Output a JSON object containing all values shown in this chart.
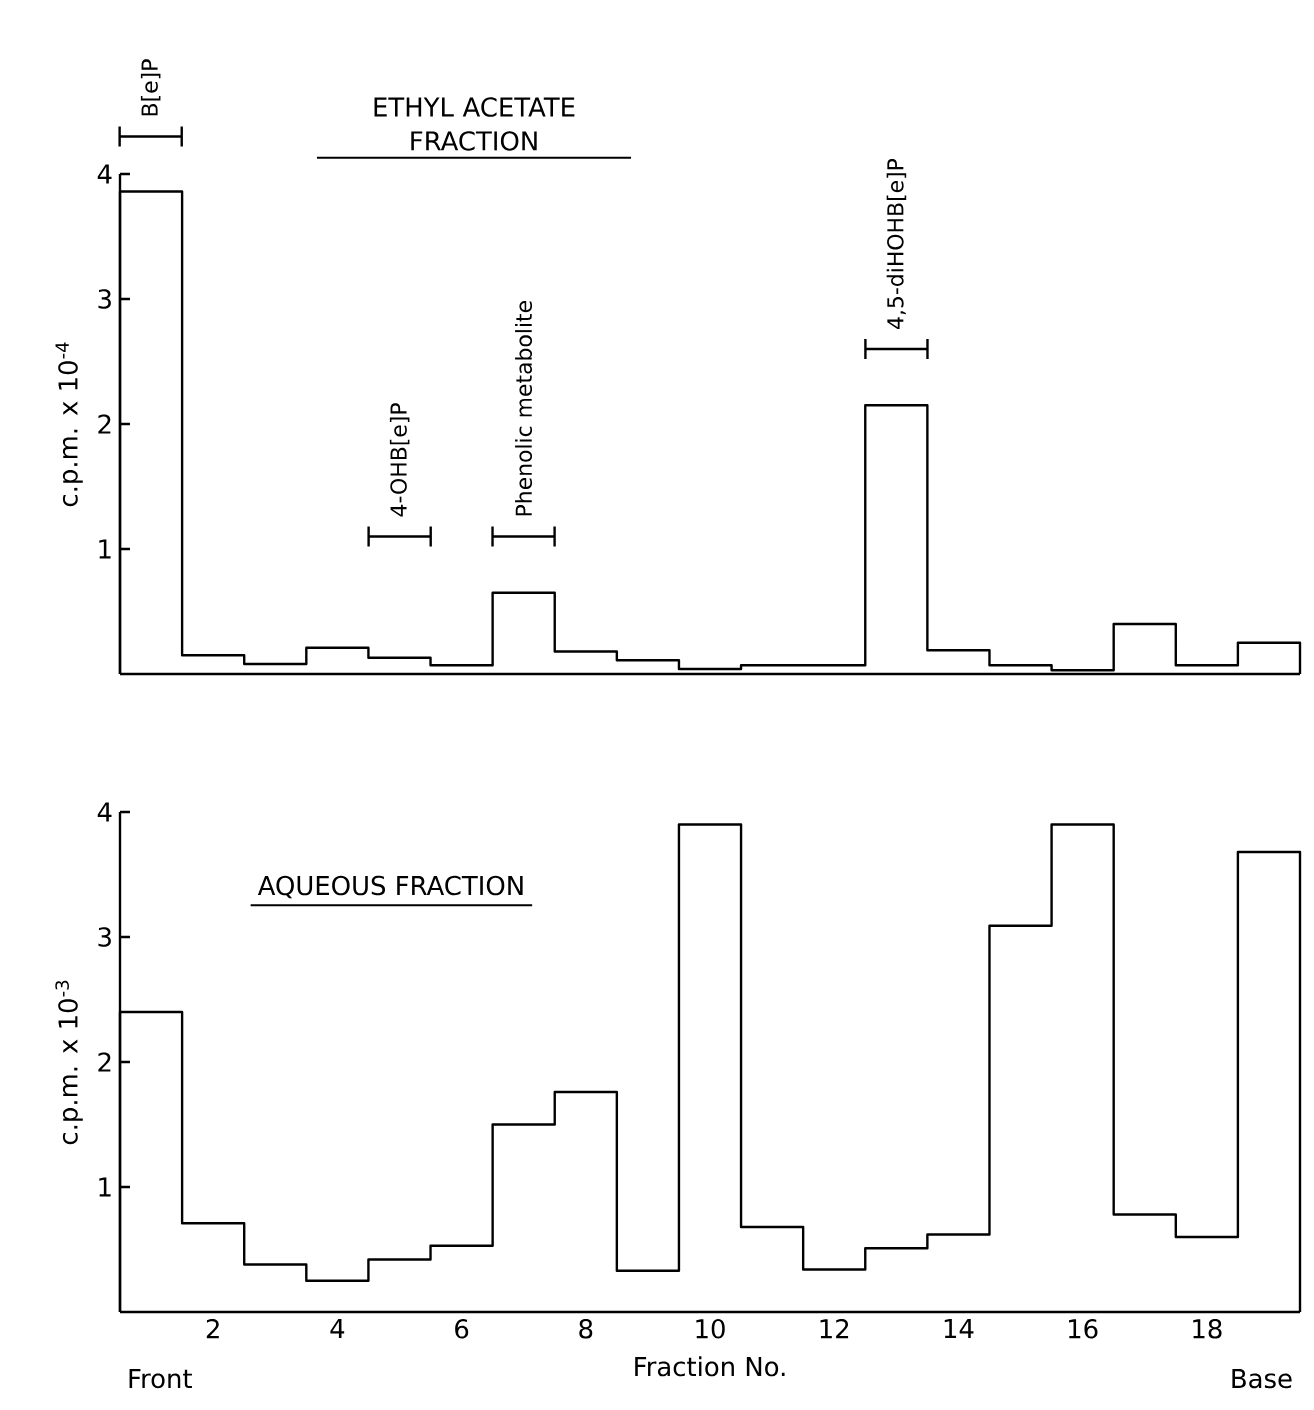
{
  "chart_data": [
    {
      "type": "histogram",
      "title": "ETHYL ACETATE FRACTION",
      "ylabel": "c.p.m. x 10$^{-4}$",
      "bins": [
        0.5,
        1.5,
        2.5,
        3.5,
        4.5,
        5.5,
        6.5,
        7.5,
        8.5,
        9.5,
        10.5,
        11.5,
        12.5,
        13.5,
        14.5,
        15.5,
        16.5,
        17.5,
        18.5,
        19.5
      ],
      "values": [
        3.86,
        0.15,
        0.08,
        0.21,
        0.13,
        0.07,
        0.65,
        0.18,
        0.11,
        0.04,
        0.07,
        0.07,
        2.15,
        0.19,
        0.07,
        0.03,
        0.4,
        0.07,
        0.25
      ],
      "color": "#000000",
      "xlim": [
        0.5,
        19.5
      ],
      "ylim": [
        0,
        4
      ],
      "yticks": [
        1,
        2,
        3,
        4
      ],
      "tick_labels": "y",
      "annotations": [
        "B[e]P",
        "4-OHB[e]P",
        "Phenolic metabolite",
        "4,5-diHOHB[e]P"
      ]
    },
    {
      "type": "histogram",
      "title": "AQUEOUS FRACTION",
      "ylabel": "c.p.m. x 10$^{-3}$",
      "xlabel": "Fraction No.",
      "bins": [
        0.5,
        1.5,
        2.5,
        3.5,
        4.5,
        5.5,
        6.5,
        7.5,
        8.5,
        9.5,
        10.5,
        11.5,
        12.5,
        13.5,
        14.5,
        15.5,
        16.5,
        17.5,
        18.5,
        19.5
      ],
      "values": [
        2.4,
        0.71,
        0.38,
        0.25,
        0.42,
        0.53,
        1.5,
        1.76,
        0.33,
        3.9,
        0.68,
        0.34,
        0.51,
        0.62,
        3.09,
        3.9,
        0.78,
        0.6,
        3.68
      ],
      "color": "#000000",
      "xlim": [
        0.5,
        19.5
      ],
      "ylim": [
        0,
        4
      ],
      "yticks": [
        1,
        2,
        3,
        4
      ],
      "xticks": [
        2,
        4,
        6,
        8,
        10,
        12,
        14,
        16,
        18
      ],
      "annotations": [
        "Front",
        "Base"
      ]
    }
  ]
}
